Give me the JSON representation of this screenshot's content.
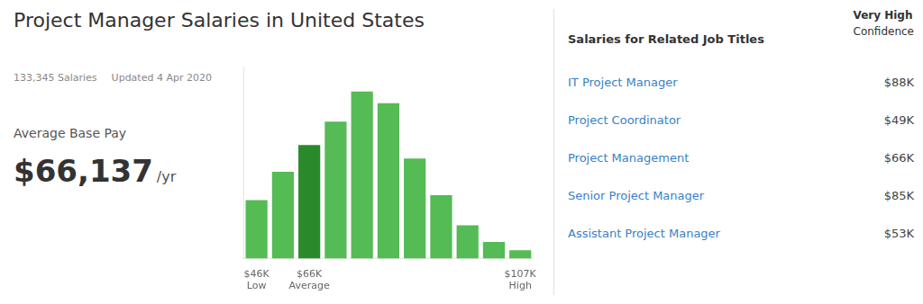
{
  "chart_data": {
    "type": "bar",
    "title": "Project Manager Salaries in United States",
    "subtitle": [
      "133,345 Salaries",
      "Updated 4 Apr 2020"
    ],
    "categories": [
      "$46K\nLow",
      null,
      "$66K\nAverage",
      null,
      null,
      null,
      null,
      null,
      null,
      null,
      "$107K\nHigh"
    ],
    "values": [
      0.35,
      0.52,
      0.68,
      0.82,
      1.0,
      0.93,
      0.6,
      0.38,
      0.2,
      0.1,
      0.05
    ],
    "colors": [
      "#55bb55",
      "#55bb55",
      "#2a8a2a",
      "#55bb55",
      "#55bb55",
      "#55bb55",
      "#55bb55",
      "#55bb55",
      "#55bb55",
      "#55bb55",
      "#55bb55"
    ],
    "ylim": [
      0,
      1.15
    ],
    "grid": false,
    "tick_labels": "x",
    "annotations": [
      [
        "Average Base Pay"
      ],
      [
        "$66,137",
        "/yr"
      ],
      [
        "Very High",
        "Confidence"
      ],
      [
        "Salaries for Related Job Titles"
      ],
      [
        "IT Project Manager",
        "$88K"
      ],
      [
        "Project Coordinator",
        "$49K"
      ],
      [
        "Project Management",
        "$66K"
      ],
      [
        "Senior Project Manager",
        "$85K"
      ],
      [
        "Assistant Project Manager",
        "$53K"
      ]
    ]
  }
}
